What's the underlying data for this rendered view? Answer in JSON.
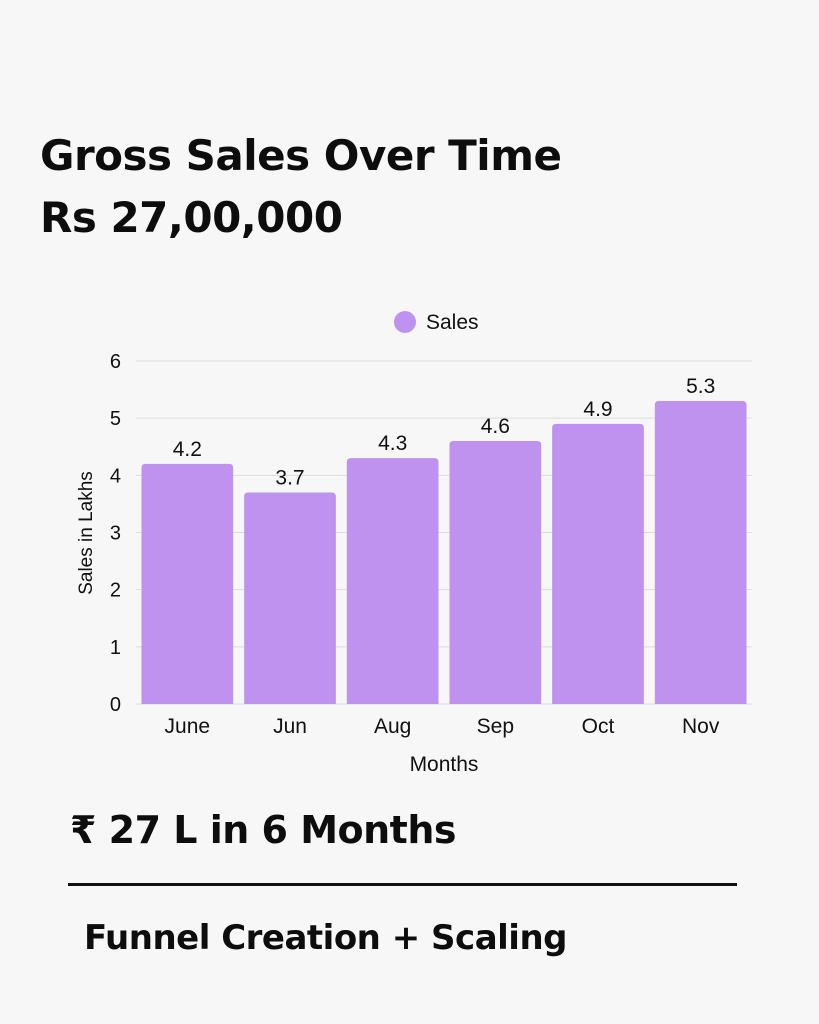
{
  "header": {
    "title": "Gross Sales Over Time",
    "subtitle": "Rs 27,00,000"
  },
  "summary": "₹ 27 L in 6 Months",
  "footer": "Funnel Creation + Scaling",
  "colors": {
    "bar": "#bf92f0",
    "grid": "#dcdcdc",
    "background": "#f7f7f7"
  },
  "chart_data": {
    "type": "bar",
    "categories": [
      "June",
      "Jun",
      "Aug",
      "Sep",
      "Oct",
      "Nov"
    ],
    "series": [
      {
        "name": "Sales",
        "values": [
          4.2,
          3.7,
          4.3,
          4.6,
          4.9,
          5.3
        ]
      }
    ],
    "xlabel": "Months",
    "ylabel": "Sales in Lakhs",
    "ylim": [
      0,
      6
    ],
    "yticks": [
      "0",
      "1",
      "2",
      "3",
      "4",
      "5",
      "6"
    ],
    "data_labels": [
      "4.2",
      "3.7",
      "4.3",
      "4.6",
      "4.9",
      "5.3"
    ],
    "legend": "top-center",
    "grid": true
  }
}
